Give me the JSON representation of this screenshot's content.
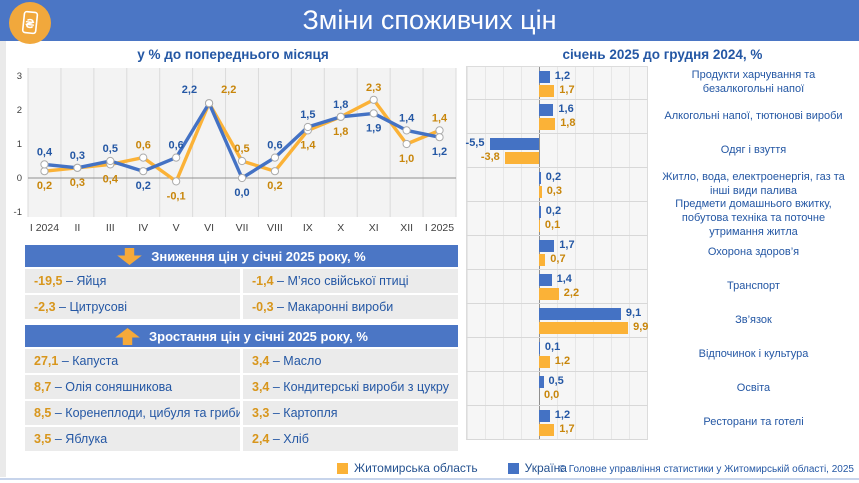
{
  "page": {
    "title": "Зміни споживчих цін",
    "copyright": "© Головне управління статистики у Житомирській області, 2025"
  },
  "colors": {
    "header_blue": "#4B76C5",
    "ukraine_blue": "#4472C4",
    "zhytomyr_orange": "#FBB237",
    "label_blue": "#2457A4",
    "label_orange": "#C8860B",
    "logo_circle": "#F1A83C"
  },
  "legend": {
    "items": [
      {
        "label": "Житомирська область",
        "color": "#FBB237"
      },
      {
        "label": "Україна",
        "color": "#4472C4"
      }
    ]
  },
  "chart_data": [
    {
      "type": "line",
      "title": "у % до попереднього місяця",
      "categories": [
        "I 2024",
        "II",
        "III",
        "IV",
        "V",
        "VI",
        "VII",
        "VIII",
        "IX",
        "X",
        "XI",
        "XII",
        "I 2025"
      ],
      "series": [
        {
          "name": "Україна",
          "color": "#4472C4",
          "values": [
            0.4,
            0.3,
            0.5,
            0.2,
            0.6,
            2.2,
            0.0,
            0.6,
            1.5,
            1.8,
            1.9,
            1.4,
            1.2
          ]
        },
        {
          "name": "Житомирська область",
          "color": "#FBB237",
          "values": [
            0.2,
            0.3,
            0.4,
            0.6,
            -0.1,
            2.2,
            0.5,
            0.2,
            1.4,
            1.8,
            2.3,
            1.0,
            1.4
          ]
        }
      ],
      "ylim": [
        -1,
        3
      ],
      "yticks": [
        3,
        2,
        1,
        0,
        -1
      ],
      "grid": "vertical"
    },
    {
      "type": "bar",
      "title": "січень 2025 до грудня 2024, %",
      "orientation": "horizontal",
      "categories": [
        "Продукти харчування та безалкогольні напої",
        "Алкогольні напої, тютюнові вироби",
        "Одяг і взуття",
        "Житло, вода, електроенергія, газ та інші види палива",
        "Предмети домашнього вжитку, побутова техніка та поточне утримання житла",
        "Охорона здоров’я",
        "Транспорт",
        "Зв’язок",
        "Відпочинок і культура",
        "Освіта",
        "Ресторани та готелі"
      ],
      "series": [
        {
          "name": "Україна",
          "color": "#4472C4",
          "values": [
            1.2,
            1.6,
            -5.5,
            0.2,
            0.2,
            1.7,
            1.4,
            9.1,
            0.1,
            0.5,
            1.2
          ]
        },
        {
          "name": "Житомирська область",
          "color": "#FBB237",
          "values": [
            1.7,
            1.8,
            -3.8,
            0.3,
            0.1,
            0.7,
            2.2,
            9.9,
            1.2,
            0.0,
            1.7
          ]
        }
      ],
      "xlim": [
        -8,
        12
      ]
    }
  ],
  "tables": [
    {
      "id": "decrease",
      "header": "Зниження цін у січні 2025 року, %",
      "arrow": "down",
      "rows": [
        [
          {
            "value": "-19,5",
            "label": "Яйця"
          },
          {
            "value": "-1,4",
            "label": "М’ясо свійської птиці"
          }
        ],
        [
          {
            "value": "-2,3",
            "label": "Цитрусові"
          },
          {
            "value": "-0,3",
            "label": "Макаронні вироби"
          }
        ]
      ]
    },
    {
      "id": "increase",
      "header": "Зростання цін у січні 2025 року, %",
      "arrow": "up",
      "rows": [
        [
          {
            "value": "27,1",
            "label": "Капуста"
          },
          {
            "value": "3,4",
            "label": "Масло"
          }
        ],
        [
          {
            "value": "8,7",
            "label": "Олія соняшникова"
          },
          {
            "value": "3,4",
            "label": "Кондитерські вироби з цукру"
          }
        ],
        [
          {
            "value": "8,5",
            "label": "Коренеплоди, цибуля та гриби"
          },
          {
            "value": "3,3",
            "label": "Картопля"
          }
        ],
        [
          {
            "value": "3,5",
            "label": "Яблука"
          },
          {
            "value": "2,4",
            "label": "Хліб"
          }
        ]
      ]
    }
  ]
}
